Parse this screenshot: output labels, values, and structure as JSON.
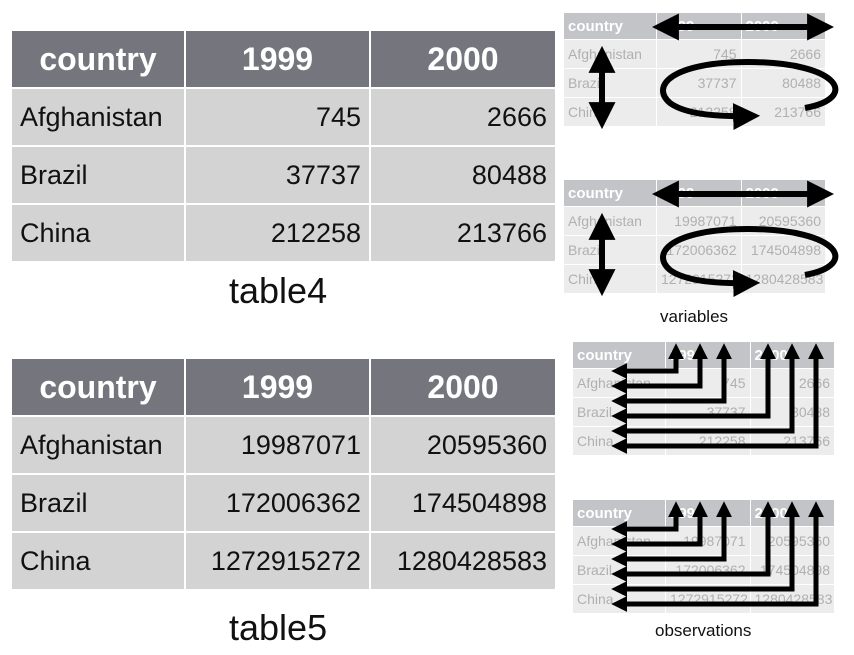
{
  "table4": {
    "caption": "table4",
    "headers": [
      "country",
      "1999",
      "2000"
    ],
    "rows": [
      [
        "Afghanistan",
        "745",
        "2666"
      ],
      [
        "Brazil",
        "37737",
        "80488"
      ],
      [
        "China",
        "212258",
        "213766"
      ]
    ]
  },
  "table5": {
    "caption": "table5",
    "headers": [
      "country",
      "1999",
      "2000"
    ],
    "rows": [
      [
        "Afghanistan",
        "19987071",
        "20595360"
      ],
      [
        "Brazil",
        "172006362",
        "174504898"
      ],
      [
        "China",
        "1272915272",
        "1280428583"
      ]
    ]
  },
  "panels": {
    "variables_label": "variables",
    "observations_label": "observations"
  },
  "colors": {
    "header_bg": "#75767d",
    "cell_bg": "#d3d3d3",
    "arrow": "#000000"
  }
}
